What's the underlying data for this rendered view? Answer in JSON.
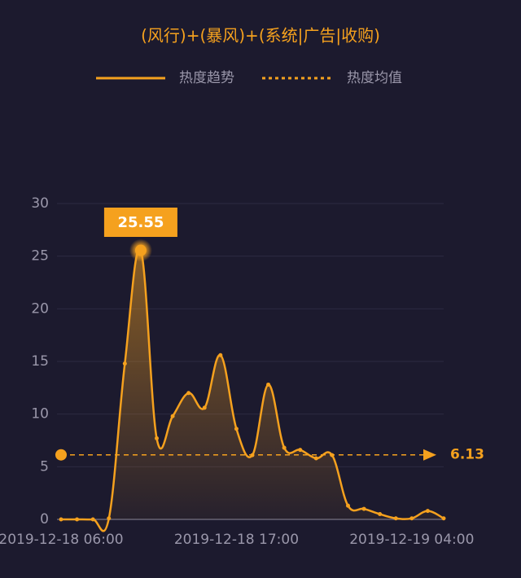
{
  "chart_data": {
    "type": "line",
    "title": "(风行)+(暴风)+(系统|广告|收购)",
    "categories": [
      "2019-12-18 06:00",
      null,
      null,
      null,
      null,
      null,
      null,
      null,
      null,
      null,
      null,
      "2019-12-18 17:00",
      null,
      null,
      null,
      null,
      null,
      null,
      null,
      null,
      null,
      null,
      "2019-12-19 04:00",
      null,
      null
    ],
    "series": [
      {
        "name": "热度趋势",
        "color": "#f5a11e",
        "values": [
          0,
          0,
          0,
          0.1,
          14.8,
          25.55,
          7.7,
          9.8,
          12.0,
          10.6,
          15.6,
          8.6,
          6.1,
          12.8,
          6.8,
          6.6,
          5.8,
          6.1,
          1.3,
          1.0,
          0.5,
          0.1,
          0.1,
          0.8,
          0.1
        ]
      }
    ],
    "mean": {
      "name": "热度均值",
      "value": 6.13
    },
    "ylim": [
      0,
      30
    ],
    "yticks": [
      0,
      5,
      10,
      15,
      20,
      25,
      30
    ],
    "grid": true
  }
}
